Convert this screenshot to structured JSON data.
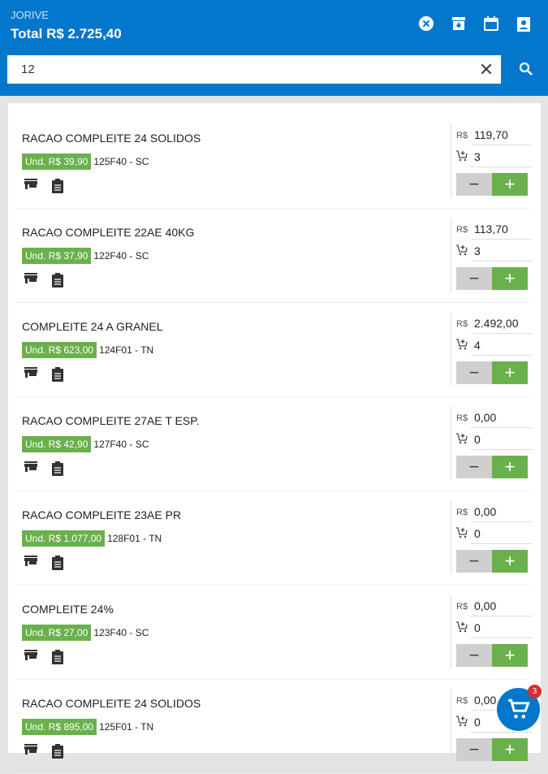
{
  "header": {
    "store": "JORIVE",
    "total": "Total R$ 2.725,40"
  },
  "search": {
    "value": "12"
  },
  "currency": "R$",
  "items": [
    {
      "name": "RACAO COMPLEITE 24 SOLIDOS",
      "unit": "Und. R$ 39,90",
      "code": "125F40 - SC",
      "total": "119,70",
      "qty": "3"
    },
    {
      "name": "RACAO COMPLEITE 22AE 40KG",
      "unit": "Und. R$ 37,90",
      "code": "122F40 - SC",
      "total": "113,70",
      "qty": "3"
    },
    {
      "name": "COMPLEITE 24 A GRANEL",
      "unit": "Und. R$ 623,00",
      "code": "124F01 - TN",
      "total": "2.492,00",
      "qty": "4"
    },
    {
      "name": "RACAO COMPLEITE 27AE T ESP.",
      "unit": "Und. R$ 42,90",
      "code": "127F40 - SC",
      "total": "0,00",
      "qty": "0"
    },
    {
      "name": "RACAO COMPLEITE 23AE PR",
      "unit": "Und. R$ 1.077,00",
      "code": "128F01 - TN",
      "total": "0,00",
      "qty": "0"
    },
    {
      "name": "COMPLEITE 24%",
      "unit": "Und. R$ 27,00",
      "code": "123F40 - SC",
      "total": "0,00",
      "qty": "0"
    },
    {
      "name": "RACAO COMPLEITE 24 SOLIDOS",
      "unit": "Und. R$ 895,00",
      "code": "125F01 - TN",
      "total": "0,00",
      "qty": "0"
    }
  ],
  "cart": {
    "count": "3"
  },
  "colors": {
    "primary": "#0277cc",
    "accent": "#6ab04c",
    "badge": "#d32f2f"
  }
}
